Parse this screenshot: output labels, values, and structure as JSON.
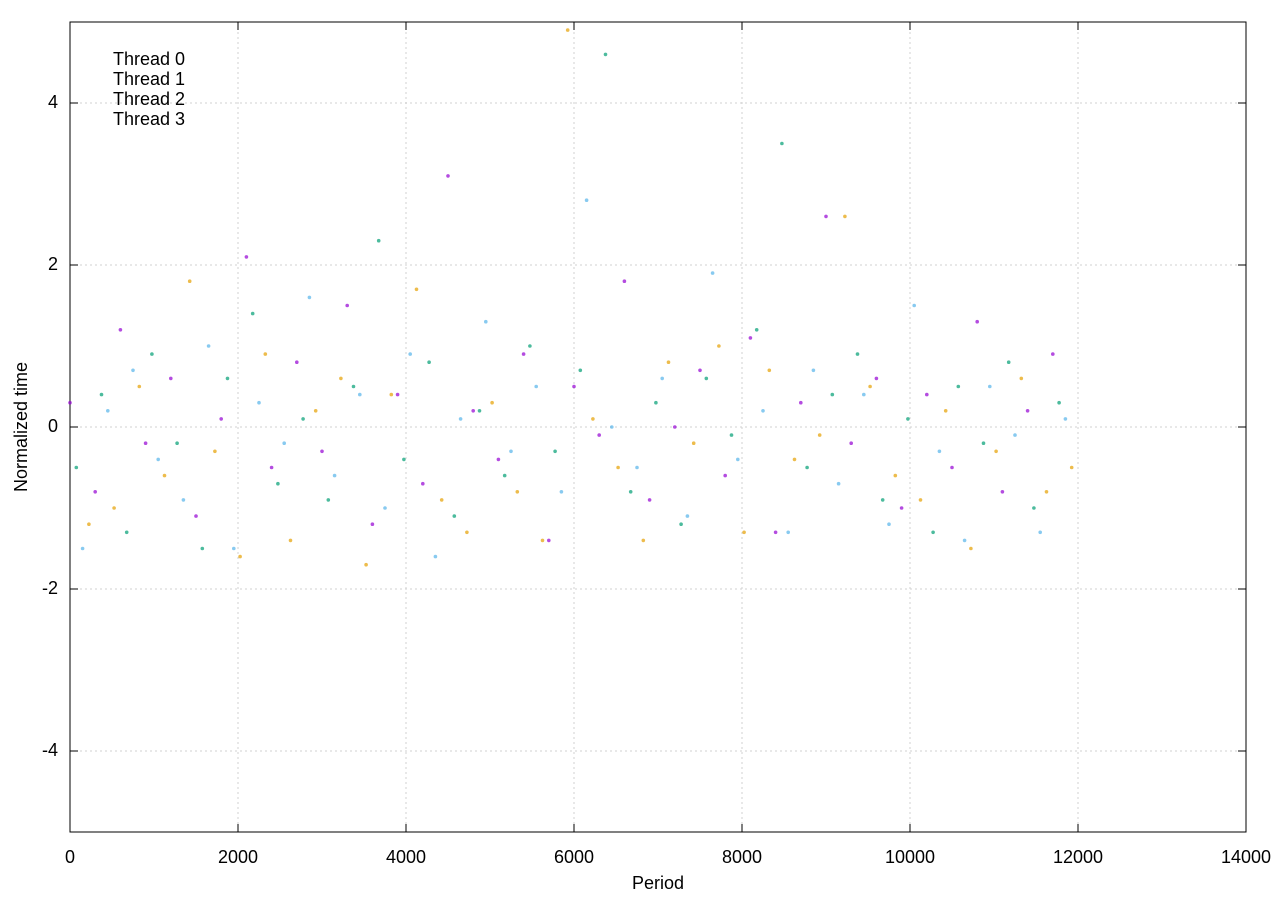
{
  "chart_data": {
    "type": "scatter",
    "xlabel": "Period",
    "ylabel": "Normalized time",
    "xlim": [
      0,
      14000
    ],
    "xticks": [
      0,
      2000,
      4000,
      6000,
      8000,
      10000,
      12000,
      14000
    ],
    "ylim": [
      -5,
      5
    ],
    "yticks": [
      -4,
      -2,
      0,
      2,
      4
    ],
    "grid": true,
    "legend": "upper left",
    "series": [
      {
        "name": "Thread 0",
        "color": "#9400d3",
        "x": [
          0,
          300,
          600,
          900,
          1200,
          1500,
          1800,
          2100,
          2400,
          2700,
          3000,
          3300,
          3600,
          3900,
          4200,
          4500,
          4800,
          5100,
          5400,
          5700,
          6000,
          6300,
          6600,
          6900,
          7200,
          7500,
          7800,
          8100,
          8400,
          8700,
          9000,
          9300,
          9600,
          9900,
          10200,
          10500,
          10800,
          11100,
          11400,
          11700
        ],
        "values": [
          0.3,
          -0.8,
          1.2,
          -0.2,
          0.6,
          -1.1,
          0.1,
          2.1,
          -0.5,
          0.8,
          -0.3,
          1.5,
          -1.2,
          0.4,
          -0.7,
          3.1,
          0.2,
          -0.4,
          0.9,
          -1.4,
          0.5,
          -0.1,
          1.8,
          -0.9,
          0.0,
          0.7,
          -0.6,
          1.1,
          -1.3,
          0.3,
          2.6,
          -0.2,
          0.6,
          -1.0,
          0.4,
          -0.5,
          1.3,
          -0.8,
          0.2,
          0.9
        ]
      },
      {
        "name": "Thread 1",
        "color": "#009e73",
        "x": [
          75,
          375,
          675,
          975,
          1275,
          1575,
          1875,
          2175,
          2475,
          2775,
          3075,
          3375,
          3675,
          3975,
          4275,
          4575,
          4875,
          5175,
          5475,
          5775,
          6075,
          6375,
          6675,
          6975,
          7275,
          7575,
          7875,
          8175,
          8475,
          8775,
          9075,
          9375,
          9675,
          9975,
          10275,
          10575,
          10875,
          11175,
          11475,
          11775
        ],
        "values": [
          -0.5,
          0.4,
          -1.3,
          0.9,
          -0.2,
          -1.5,
          0.6,
          1.4,
          -0.7,
          0.1,
          -0.9,
          0.5,
          2.3,
          -0.4,
          0.8,
          -1.1,
          0.2,
          -0.6,
          1.0,
          -0.3,
          0.7,
          4.6,
          -0.8,
          0.3,
          -1.2,
          0.6,
          -0.1,
          1.2,
          3.5,
          -0.5,
          0.4,
          0.9,
          -0.9,
          0.1,
          -1.3,
          0.5,
          -0.2,
          0.8,
          -1.0,
          0.3
        ]
      },
      {
        "name": "Thread 2",
        "color": "#56b4e9",
        "x": [
          150,
          450,
          750,
          1050,
          1350,
          1650,
          1950,
          2250,
          2550,
          2850,
          3150,
          3450,
          3750,
          4050,
          4350,
          4650,
          4950,
          5250,
          5550,
          5850,
          6150,
          6450,
          6750,
          7050,
          7350,
          7650,
          7950,
          8250,
          8550,
          8850,
          9150,
          9450,
          9750,
          10050,
          10350,
          10650,
          10950,
          11250,
          11550,
          11850
        ],
        "values": [
          -1.5,
          0.2,
          0.7,
          -0.4,
          -0.9,
          1.0,
          -1.5,
          0.3,
          -0.2,
          1.6,
          -0.6,
          0.4,
          -1.0,
          0.9,
          -1.6,
          0.1,
          1.3,
          -0.3,
          0.5,
          -0.8,
          2.8,
          0.0,
          -0.5,
          0.6,
          -1.1,
          1.9,
          -0.4,
          0.2,
          -1.3,
          0.7,
          -0.7,
          0.4,
          -1.2,
          1.5,
          -0.3,
          -1.4,
          0.5,
          -0.1,
          -1.3,
          0.1
        ]
      },
      {
        "name": "Thread 3",
        "color": "#e69f00",
        "x": [
          225,
          525,
          825,
          1125,
          1425,
          1725,
          2025,
          2325,
          2625,
          2925,
          3225,
          3525,
          3825,
          4125,
          4425,
          4725,
          5025,
          5325,
          5625,
          5925,
          6225,
          6525,
          6825,
          7125,
          7425,
          7725,
          8025,
          8325,
          8625,
          8925,
          9225,
          9525,
          9825,
          10125,
          10425,
          10725,
          11025,
          11325,
          11625,
          11925
        ],
        "values": [
          -1.2,
          -1.0,
          0.5,
          -0.6,
          1.8,
          -0.3,
          -1.6,
          0.9,
          -1.4,
          0.2,
          0.6,
          -1.7,
          0.4,
          1.7,
          -0.9,
          -1.3,
          0.3,
          -0.8,
          -1.4,
          4.9,
          0.1,
          -0.5,
          -1.4,
          0.8,
          -0.2,
          1.0,
          -1.3,
          0.7,
          -0.4,
          -0.1,
          2.6,
          0.5,
          -0.6,
          -0.9,
          0.2,
          -1.5,
          -0.3,
          0.6,
          -0.8,
          -0.5
        ]
      }
    ]
  }
}
